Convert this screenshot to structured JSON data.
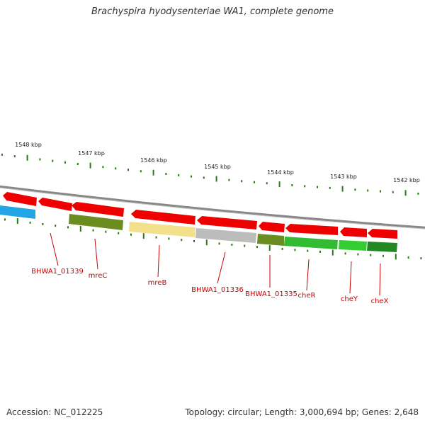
{
  "title": "Brachyspira hyodysenteriae WA1, complete genome",
  "footer": {
    "accession": "Accession: NC_012225",
    "summary": "Topology: circular; Length: 3,000,694 bp; Genes: 2,648"
  },
  "colors": {
    "forward_strand": "#ee0000",
    "label": "#cc0000",
    "ticks": "#2a7a14",
    "backbone": "#888888"
  },
  "scale_labels": [
    "1548 kbp",
    "1547 kbp",
    "1546 kbp",
    "1545 kbp",
    "1544 kbp",
    "1543 kbp",
    "1542 kbp"
  ],
  "gene_labels": [
    "BHWA1_01339",
    "mreC",
    "mreB",
    "BHWA1_01336",
    "BHWA1_01335",
    "cheR",
    "cheY",
    "cheX"
  ],
  "features": {
    "forward": [
      {
        "color": "#ee0000"
      },
      {
        "color": "#ee0000"
      },
      {
        "color": "#ee0000"
      },
      {
        "color": "#ee0000"
      },
      {
        "color": "#ee0000"
      },
      {
        "color": "#ee0000"
      },
      {
        "color": "#ee0000"
      },
      {
        "color": "#ee0000"
      },
      {
        "color": "#ee0000"
      }
    ],
    "reverse": [
      {
        "color": "#22a6e6"
      },
      {
        "color": "#6b8c1f"
      },
      {
        "color": "#f2e08a"
      },
      {
        "color": "#bcbcbc"
      },
      {
        "color": "#6b8c1f"
      },
      {
        "color": "#33bb33"
      },
      {
        "color": "#33cc33"
      },
      {
        "color": "#228822"
      }
    ]
  }
}
